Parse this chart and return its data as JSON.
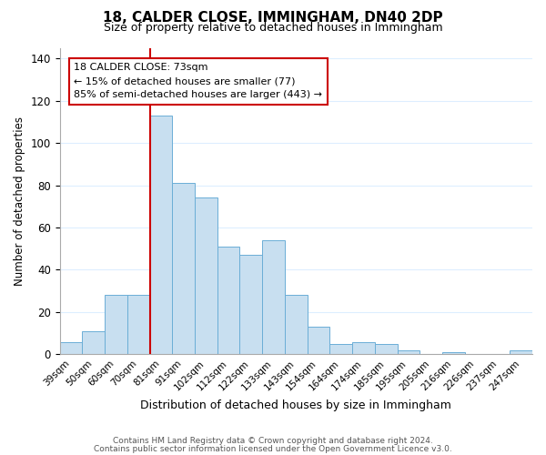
{
  "title": "18, CALDER CLOSE, IMMINGHAM, DN40 2DP",
  "subtitle": "Size of property relative to detached houses in Immingham",
  "xlabel": "Distribution of detached houses by size in Immingham",
  "ylabel": "Number of detached properties",
  "bar_color": "#c8dff0",
  "bar_edge_color": "#6baed6",
  "categories": [
    "39sqm",
    "50sqm",
    "60sqm",
    "70sqm",
    "81sqm",
    "91sqm",
    "102sqm",
    "112sqm",
    "122sqm",
    "133sqm",
    "143sqm",
    "154sqm",
    "164sqm",
    "174sqm",
    "185sqm",
    "195sqm",
    "205sqm",
    "216sqm",
    "226sqm",
    "237sqm",
    "247sqm"
  ],
  "values": [
    6,
    11,
    28,
    28,
    113,
    81,
    74,
    51,
    47,
    54,
    28,
    13,
    5,
    6,
    5,
    2,
    0,
    1,
    0,
    0,
    2
  ],
  "vline_x_idx": 3.5,
  "vline_color": "#cc0000",
  "ylim": [
    0,
    145
  ],
  "yticks": [
    0,
    20,
    40,
    60,
    80,
    100,
    120,
    140
  ],
  "annotation_title": "18 CALDER CLOSE: 73sqm",
  "annotation_line1": "← 15% of detached houses are smaller (77)",
  "annotation_line2": "85% of semi-detached houses are larger (443) →",
  "annotation_box_color": "#ffffff",
  "annotation_box_edge": "#cc0000",
  "footer_line1": "Contains HM Land Registry data © Crown copyright and database right 2024.",
  "footer_line2": "Contains public sector information licensed under the Open Government Licence v3.0.",
  "background_color": "#ffffff",
  "grid_color": "#ddeeff"
}
